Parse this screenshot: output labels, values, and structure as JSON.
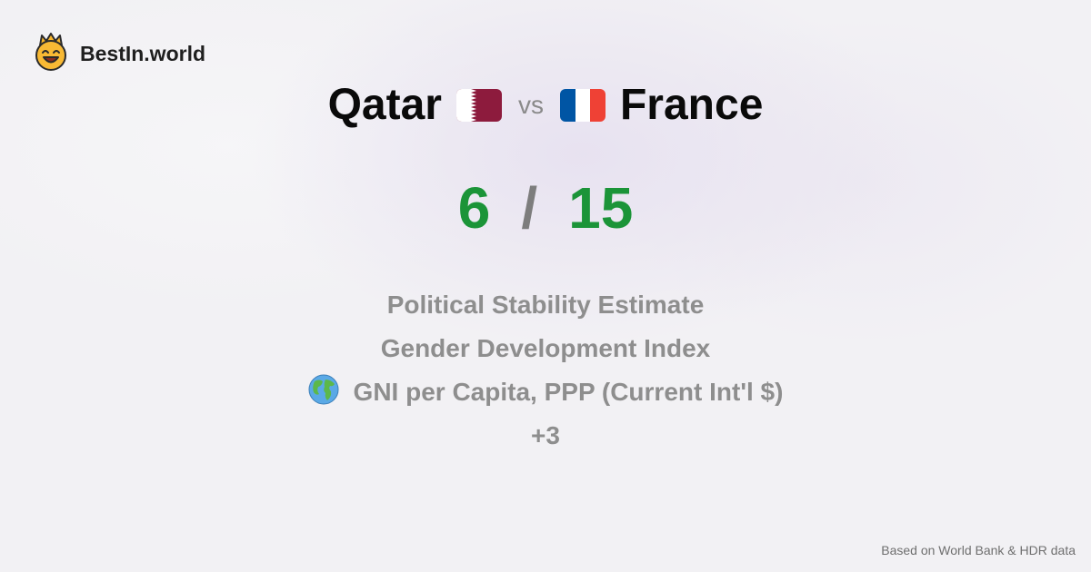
{
  "brand": {
    "name": "BestIn.world",
    "logo_icon": "crowned-smiley-icon"
  },
  "comparison": {
    "country_a": "Qatar",
    "flag_a_icon": "qatar-flag-icon",
    "vs_label": "vs",
    "flag_b_icon": "france-flag-icon",
    "country_b": "France"
  },
  "score": {
    "a": "6",
    "separator": "/",
    "b": "15"
  },
  "metrics": [
    {
      "label": "Political Stability Estimate"
    },
    {
      "label": "Gender Development Index"
    },
    {
      "label": "GNI per Capita, PPP (Current Int'l $)",
      "icon": "globe-icon"
    },
    {
      "label": "+3"
    }
  ],
  "footer": {
    "source": "Based on World Bank & HDR data"
  },
  "colors": {
    "score_green": "#1b9438",
    "muted_gray": "#8e8e8e",
    "qatar_maroon": "#8d1b3d",
    "france_blue": "#0055a4",
    "france_red": "#ef4135"
  }
}
